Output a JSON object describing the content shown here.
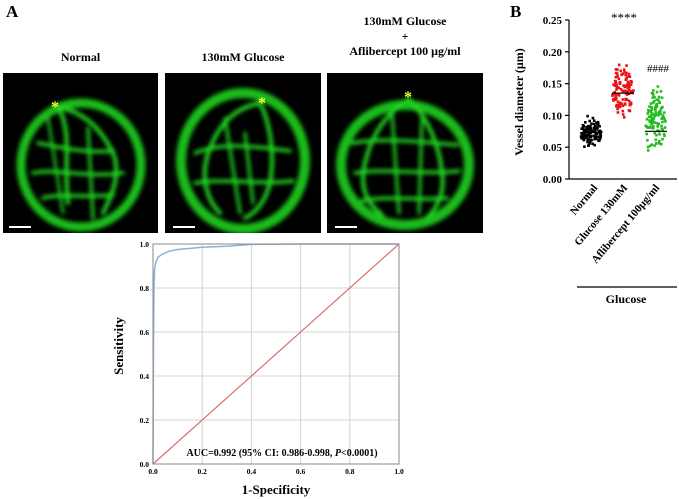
{
  "panelA": {
    "letter": "A",
    "conditions": [
      {
        "title": "Normal"
      },
      {
        "title": "130mM Glucose"
      },
      {
        "title_lines": [
          "130mM Glucose",
          "+",
          "Aflibercept 100 μg/ml"
        ]
      }
    ],
    "marker": "*",
    "colors": {
      "vessel": "#22dd22",
      "marker": "#ffff33"
    }
  },
  "panelB": {
    "letter": "B",
    "ylabel": "Vessel diameter (μm)",
    "yticks": [
      "0.00",
      "0.05",
      "0.10",
      "0.15",
      "0.20",
      "0.25"
    ],
    "xcategories": [
      "Normal",
      "Glucose 130mM",
      "Aflibercept 100μg/ml"
    ],
    "group_label": "Glucose",
    "sig": [
      "****",
      "####"
    ],
    "colors": [
      "#000000",
      "#ee1111",
      "#22bb22"
    ]
  },
  "chart_data": [
    {
      "type": "scatter",
      "ylabel": "Vessel diameter (μm)",
      "ylim": [
        0,
        0.25
      ],
      "categories": [
        "Normal",
        "Glucose 130mM",
        "Aflibercept 100μg/ml"
      ],
      "summary": [
        {
          "category": "Normal",
          "center": 0.073,
          "min": 0.045,
          "max": 0.105
        },
        {
          "category": "Glucose 130mM",
          "center": 0.135,
          "min": 0.085,
          "max": 0.195
        },
        {
          "category": "Aflibercept 100μg/ml",
          "center": 0.075,
          "min": 0.035,
          "max": 0.16
        }
      ],
      "annotations": [
        "****",
        "####"
      ]
    },
    {
      "type": "line",
      "xlabel": "1-Specificity",
      "ylabel": "Sensitivity",
      "xlim": [
        0,
        1
      ],
      "ylim": [
        0,
        1
      ],
      "xticks": [
        "0.0",
        "0.2",
        "0.4",
        "0.6",
        "0.8",
        "1.0"
      ],
      "yticks": [
        "0.0",
        "0.2",
        "0.4",
        "0.6",
        "0.8",
        "1.0"
      ],
      "series": [
        {
          "points": [
            [
              0,
              0
            ],
            [
              0.002,
              0.55
            ],
            [
              0.004,
              0.8
            ],
            [
              0.006,
              0.88
            ],
            [
              0.01,
              0.91
            ],
            [
              0.02,
              0.94
            ],
            [
              0.04,
              0.955
            ],
            [
              0.06,
              0.965
            ],
            [
              0.1,
              0.975
            ],
            [
              0.2,
              0.985
            ],
            [
              0.3,
              0.99
            ],
            [
              0.4,
              0.998
            ],
            [
              0.6,
              1
            ],
            [
              1,
              1
            ]
          ],
          "color": "#8ab4dc"
        },
        {
          "points": [
            [
              0,
              0
            ],
            [
              1,
              1
            ]
          ],
          "color": "#d9706f"
        }
      ],
      "annotation": {
        "prefix": "AUC=0.992 (95% CI: 0.986-0.998, ",
        "italic": "P",
        "suffix": "<0.0001)"
      }
    }
  ]
}
